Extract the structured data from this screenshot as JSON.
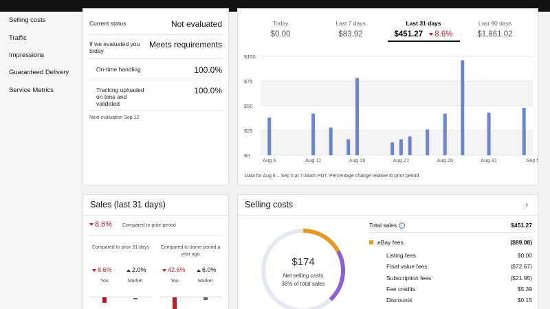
{
  "sidebar": {
    "items": [
      "Selling costs",
      "Traffic",
      "Impressions",
      "Guaranteed Delivery",
      "Service Metrics"
    ]
  },
  "status": {
    "current_label": "Current status",
    "current_value": "Not evaluated",
    "if_eval_label": "If we evaluated you today",
    "if_eval_value": "Meets requirements",
    "ontime_label": "On-time handling",
    "ontime_value": "100.0%",
    "tracking_label": "Tracking uploaded on time and validated",
    "tracking_value": "100.0%",
    "next_eval": "Next evaluation Sep 12"
  },
  "periods": [
    {
      "label": "Today",
      "value": "$0.00"
    },
    {
      "label": "Last 7 days",
      "value": "$83.92"
    },
    {
      "label": "Last 31 days",
      "value": "$451.27",
      "change": "8.6%"
    },
    {
      "label": "Last 90 days",
      "value": "$1,861.02"
    }
  ],
  "chart_data": {
    "type": "bar",
    "y_ticks": [
      "$100",
      "$75",
      "$50",
      "$25",
      "$0"
    ],
    "x_tick_labels": [
      "Aug 6",
      "Aug 11",
      "Aug 16",
      "Aug 21",
      "Aug 26",
      "Aug 31",
      "Sep 5"
    ],
    "ylim": [
      0,
      100
    ],
    "x_start_day": 5,
    "x_end_day": 36,
    "bars": [
      {
        "day": 6,
        "value": 38
      },
      {
        "day": 11,
        "value": 42
      },
      {
        "day": 13,
        "value": 28
      },
      {
        "day": 15,
        "value": 16
      },
      {
        "day": 16,
        "value": 78
      },
      {
        "day": 20,
        "value": 13
      },
      {
        "day": 21,
        "value": 16
      },
      {
        "day": 22,
        "value": 19
      },
      {
        "day": 24,
        "value": 26
      },
      {
        "day": 26,
        "value": 42
      },
      {
        "day": 28,
        "value": 96
      },
      {
        "day": 31,
        "value": 43
      },
      {
        "day": 35,
        "value": 48
      }
    ],
    "bar_color": "#6d86c9",
    "footnote": "Data for Aug 6 – Sep 5 at 7:44am PDT. Percentage change relative to prior period."
  },
  "sales": {
    "title": "Sales (last 31 days)",
    "change": "8.6%",
    "change_desc": "Compared to prior period",
    "col1_header": "Compared to prior 31 days",
    "col2_header": "Compared to same period a year ago",
    "col1_you": "8.6%",
    "col1_market": "2.0%",
    "col2_you": "42.6%",
    "col2_market": "6.0%",
    "you_label": "You",
    "market_label": "Market"
  },
  "costs": {
    "title": "Selling costs",
    "donut_amount": "$174",
    "donut_line1": "Net selling costs",
    "donut_line2": "38% of total sales",
    "donut_segments": [
      {
        "fraction": 0.17,
        "color": "#e69a22"
      },
      {
        "fraction": 0.21,
        "color": "#8e5ed3"
      }
    ],
    "total_label": "Total sales",
    "total_value": "$451.27",
    "ebay_label": "eBay fees",
    "ebay_value": "($89.08)",
    "ebay_color": "#e69a22",
    "fees": [
      {
        "label": "Listing fees",
        "value": "$0.00"
      },
      {
        "label": "Final value fees",
        "value": "($72.67)"
      },
      {
        "label": "Subscription fees",
        "value": "($21.95)"
      },
      {
        "label": "Fee credits",
        "value": "$5.39"
      },
      {
        "label": "Discounts",
        "value": "$0.15"
      }
    ]
  }
}
